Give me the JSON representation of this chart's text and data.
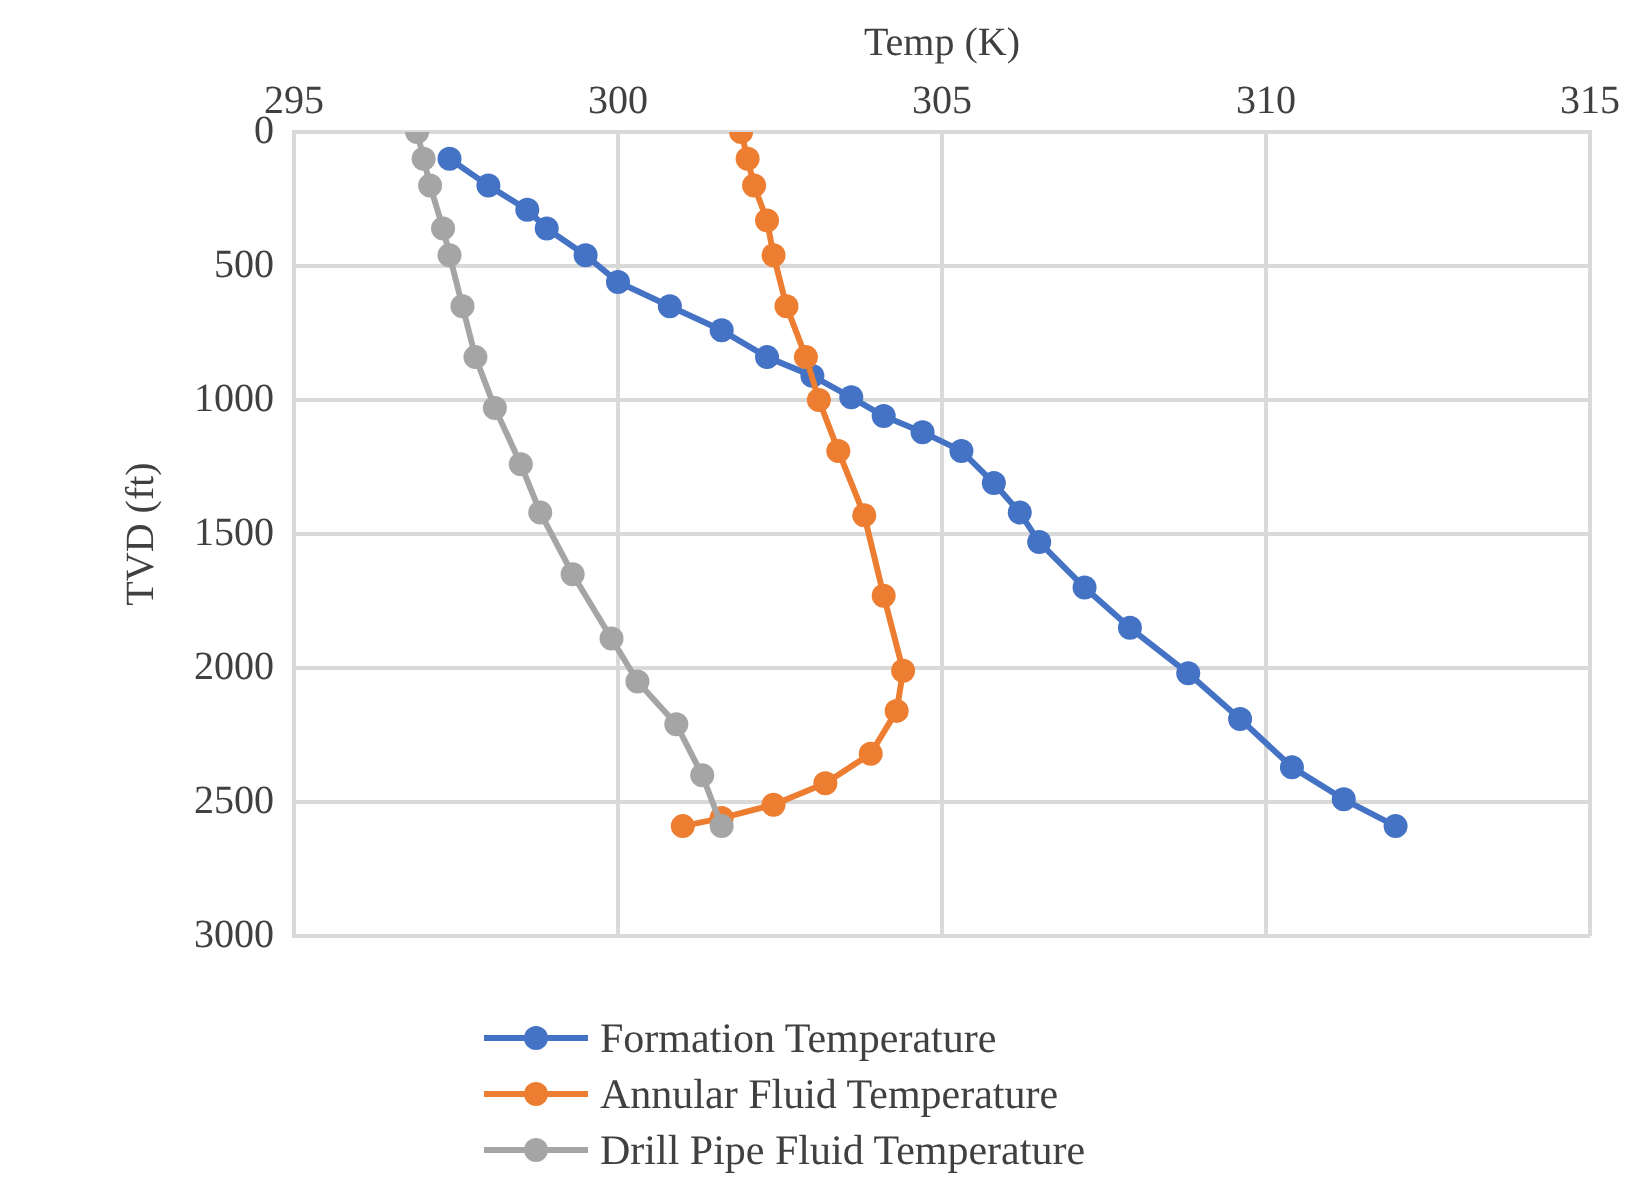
{
  "chart_data": {
    "type": "line",
    "xlabel": "Temp (K)",
    "ylabel": "TVD (ft)",
    "xlim": [
      295,
      315
    ],
    "xticks": [
      295,
      300,
      305,
      310,
      315
    ],
    "ylim": [
      3000,
      0
    ],
    "yticks": [
      0,
      500,
      1000,
      1500,
      2000,
      2500,
      3000
    ],
    "grid": true,
    "legend": "bottom",
    "marker": "circle",
    "line_style": "solid",
    "series": [
      {
        "name": "Formation Temperature",
        "color": "#4472c4",
        "x": [
          297.4,
          298.0,
          298.6,
          298.9,
          299.5,
          300.0,
          300.8,
          301.6,
          302.3,
          303.0,
          303.6,
          304.1,
          304.7,
          305.3,
          305.8,
          306.2,
          306.5,
          307.2,
          307.9,
          308.8,
          309.6,
          310.4,
          311.2,
          312.0
        ],
        "values": [
          100,
          200,
          290,
          360,
          460,
          560,
          650,
          740,
          840,
          910,
          990,
          1060,
          1120,
          1190,
          1310,
          1420,
          1530,
          1700,
          1850,
          2020,
          2190,
          2370,
          2490,
          2590
        ]
      },
      {
        "name": "Annular Fluid Temperature",
        "color": "#ed7d31",
        "x": [
          301.9,
          302.0,
          302.1,
          302.3,
          302.4,
          302.6,
          302.9,
          303.1,
          303.4,
          303.8,
          304.1,
          304.4,
          304.3,
          303.9,
          303.2,
          302.4,
          301.6,
          301.0
        ],
        "values": [
          0,
          100,
          200,
          330,
          460,
          650,
          840,
          1000,
          1190,
          1430,
          1730,
          2010,
          2160,
          2320,
          2430,
          2510,
          2560,
          2590
        ]
      },
      {
        "name": "Drill Pipe Fluid Temperature",
        "color": "#a5a5a5",
        "x": [
          296.9,
          297.0,
          297.1,
          297.3,
          297.4,
          297.6,
          297.8,
          298.1,
          298.5,
          298.8,
          299.3,
          299.9,
          300.3,
          300.9,
          301.3,
          301.6
        ],
        "values": [
          0,
          100,
          200,
          360,
          460,
          650,
          840,
          1030,
          1240,
          1420,
          1650,
          1890,
          2050,
          2210,
          2400,
          2590
        ]
      }
    ]
  }
}
